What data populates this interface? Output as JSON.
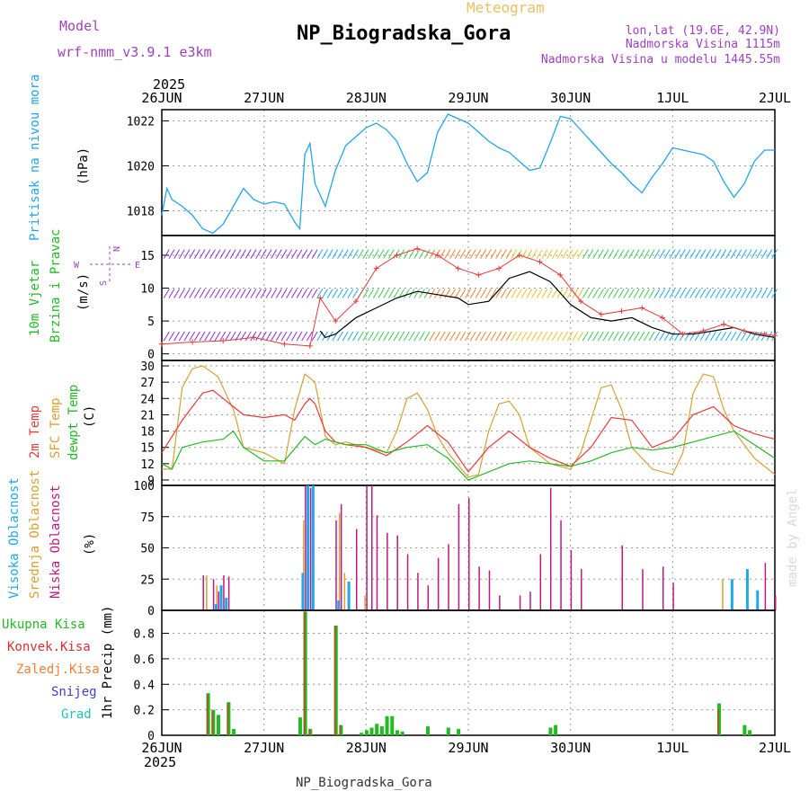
{
  "header": {
    "model_label": "Model",
    "model_value": "wrf-nmm_v3.9.1 e3km",
    "meteogram": "Meteogram",
    "station": "NP_Biogradska_Gora",
    "lonlat": "lon,lat (19.6E, 42.9N)",
    "altitude": "Nadmorska Visina 1115m",
    "model_altitude": "Nadmorska Visina u modelu 1445.55m",
    "year": "2025",
    "footer_station": "NP_Biogradska_Gora",
    "credit": "made by Angel"
  },
  "colors": {
    "pressure": "#1ea8e8",
    "purple": "#a040c0",
    "wind_green": "#22bb22",
    "t2m": "#e83a3a",
    "sfc": "#d8a030",
    "dew": "#22bb22",
    "high_cloud": "#1ea8e8",
    "mid_cloud": "#d8a030",
    "low_cloud": "#c01880",
    "precip_total": "#22bb22",
    "precip_conv": "#d83030",
    "precip_frozen": "#f08030",
    "snow": "#4040d0",
    "hail": "#20c0c0",
    "grid": "#9a9a9a"
  },
  "chart_data": {
    "type": "meteogram",
    "x_dates": [
      "26JUN",
      "27JUN",
      "28JUN",
      "29JUN",
      "30JUN",
      "1JUL",
      "2JUL"
    ],
    "x_range_days": [
      0,
      6
    ],
    "panels": [
      {
        "id": "pressure",
        "ylabel": "Pritisak na nivou mora",
        "unit": "(hPa)",
        "yticks": [
          "1018",
          "1020",
          "1022"
        ],
        "ylim": [
          1016.9,
          1022.5
        ],
        "series": [
          {
            "name": "Pressure",
            "x": [
              0,
              0.05,
              0.1,
              0.2,
              0.3,
              0.4,
              0.5,
              0.6,
              0.7,
              0.8,
              0.9,
              1.0,
              1.1,
              1.2,
              1.3,
              1.35,
              1.4,
              1.45,
              1.5,
              1.6,
              1.7,
              1.8,
              1.9,
              2.0,
              2.1,
              2.2,
              2.3,
              2.4,
              2.5,
              2.6,
              2.7,
              2.8,
              2.9,
              3.0,
              3.1,
              3.2,
              3.3,
              3.4,
              3.5,
              3.6,
              3.7,
              3.8,
              3.9,
              4.0,
              4.1,
              4.2,
              4.3,
              4.4,
              4.5,
              4.6,
              4.7,
              4.8,
              4.9,
              5.0,
              5.1,
              5.2,
              5.3,
              5.4,
              5.5,
              5.6,
              5.7,
              5.8,
              5.9,
              6.0
            ],
            "values": [
              1017.8,
              1019.0,
              1018.5,
              1018.2,
              1017.8,
              1017.2,
              1017.0,
              1017.4,
              1018.2,
              1019.0,
              1018.5,
              1018.3,
              1018.4,
              1018.3,
              1017.5,
              1017.2,
              1020.5,
              1021.0,
              1019.2,
              1018.2,
              1019.8,
              1020.9,
              1021.3,
              1021.7,
              1021.9,
              1021.6,
              1021.1,
              1020.1,
              1019.3,
              1019.7,
              1021.5,
              1022.3,
              1022.1,
              1021.9,
              1021.5,
              1021.1,
              1020.8,
              1020.6,
              1020.2,
              1019.8,
              1019.9,
              1021.0,
              1022.2,
              1022.1,
              1021.6,
              1021.1,
              1020.6,
              1020.1,
              1019.7,
              1019.2,
              1018.8,
              1019.5,
              1020.1,
              1020.8,
              1020.7,
              1020.6,
              1020.5,
              1020.2,
              1019.3,
              1018.6,
              1019.2,
              1020.2,
              1020.7,
              1020.7
            ]
          }
        ]
      },
      {
        "id": "wind",
        "ylabel": "10m Vjetar Brzina i Pravac",
        "unit": "(m/s)",
        "yticks": [
          "0",
          "5",
          "10",
          "15"
        ],
        "ylim": [
          -1,
          18
        ],
        "compass": {
          "n": "N",
          "s": "S",
          "e": "E",
          "w": "W"
        },
        "series": [
          {
            "name": "Gust (red +)",
            "x": [
              0,
              0.3,
              0.6,
              0.9,
              1.2,
              1.45,
              1.55,
              1.7,
              1.9,
              2.1,
              2.3,
              2.5,
              2.7,
              2.9,
              3.1,
              3.3,
              3.5,
              3.7,
              3.9,
              4.1,
              4.3,
              4.5,
              4.7,
              4.9,
              5.1,
              5.3,
              5.5,
              5.7,
              5.9,
              6.0
            ],
            "values": [
              1.5,
              1.8,
              2.0,
              2.5,
              1.5,
              1.2,
              8.5,
              5.0,
              8.0,
              13.0,
              15.0,
              16.0,
              15.0,
              13.0,
              12.0,
              13.0,
              15.0,
              14.0,
              12.0,
              8.0,
              6.0,
              6.5,
              7.0,
              5.5,
              3.0,
              3.5,
              4.5,
              3.5,
              3.0,
              2.8
            ]
          },
          {
            "name": "Mean (black)",
            "x": [
              1.55,
              1.6,
              1.7,
              1.9,
              2.1,
              2.3,
              2.5,
              2.7,
              2.9,
              3.0,
              3.2,
              3.4,
              3.6,
              3.8,
              4.0,
              4.2,
              4.4,
              4.6,
              4.8,
              5.0,
              5.2,
              5.4,
              5.6,
              5.8,
              6.0
            ],
            "values": [
              3.5,
              2.5,
              3.0,
              5.5,
              7.0,
              8.5,
              9.5,
              9.0,
              8.5,
              7.5,
              8.0,
              11.5,
              12.5,
              11.0,
              7.5,
              5.5,
              5.0,
              5.5,
              4.0,
              3.0,
              3.0,
              3.5,
              4.0,
              3.0,
              2.5
            ]
          }
        ]
      },
      {
        "id": "temperature",
        "ylabel_t2m": "2m Temp",
        "ylabel_sfc": "SFC Temp",
        "ylabel_dew": "dewpt Temp",
        "unit": "(C)",
        "yticks": [
          "9",
          "12",
          "15",
          "18",
          "21",
          "24",
          "27",
          "30"
        ],
        "ylim": [
          8,
          31
        ],
        "series": [
          {
            "name": "2m Temp",
            "x": [
              0,
              0.2,
              0.4,
              0.5,
              0.6,
              0.8,
              1.0,
              1.2,
              1.3,
              1.4,
              1.45,
              1.5,
              1.6,
              1.7,
              1.8,
              2.0,
              2.2,
              2.4,
              2.6,
              2.8,
              3.0,
              3.2,
              3.4,
              3.6,
              3.8,
              4.0,
              4.2,
              4.4,
              4.6,
              4.8,
              5.0,
              5.2,
              5.4,
              5.6,
              5.8,
              6.0
            ],
            "values": [
              14,
              20,
              25,
              25.5,
              24,
              21,
              20.5,
              21,
              20,
              23,
              24,
              23,
              18,
              16,
              15.5,
              15,
              13.5,
              16,
              19,
              16,
              10.5,
              15,
              18,
              15,
              13,
              11.5,
              15,
              20.5,
              20,
              15,
              16.5,
              21,
              22.5,
              19,
              17.5,
              16.5
            ]
          },
          {
            "name": "SFC Temp",
            "x": [
              0,
              0.1,
              0.2,
              0.3,
              0.4,
              0.55,
              0.7,
              0.8,
              1.0,
              1.2,
              1.3,
              1.4,
              1.5,
              1.6,
              1.7,
              1.8,
              2.0,
              2.2,
              2.3,
              2.4,
              2.5,
              2.6,
              2.7,
              2.8,
              3.0,
              3.1,
              3.2,
              3.3,
              3.4,
              3.5,
              3.6,
              3.8,
              4.0,
              4.1,
              4.2,
              4.3,
              4.4,
              4.5,
              4.6,
              4.8,
              5.0,
              5.1,
              5.2,
              5.3,
              5.4,
              5.5,
              5.6,
              5.8,
              6.0
            ],
            "values": [
              11,
              11,
              26,
              29.5,
              30,
              28,
              22,
              15,
              14,
              12,
              22,
              28.5,
              27,
              17,
              15.5,
              16,
              15,
              14,
              18,
              24,
              25,
              22,
              17,
              14,
              9.5,
              10,
              18,
              23,
              23.5,
              21,
              15,
              12,
              11,
              14,
              20,
              26,
              26.5,
              22,
              15,
              11,
              10,
              14,
              25,
              28.5,
              28,
              22,
              18,
              13,
              10
            ]
          },
          {
            "name": "dewpt Temp",
            "x": [
              0,
              0.1,
              0.2,
              0.4,
              0.6,
              0.7,
              0.8,
              1.0,
              1.2,
              1.4,
              1.5,
              1.6,
              1.8,
              2.0,
              2.2,
              2.4,
              2.6,
              2.8,
              3.0,
              3.2,
              3.4,
              3.6,
              3.8,
              4.0,
              4.2,
              4.4,
              4.6,
              4.8,
              5.0,
              5.2,
              5.4,
              5.6,
              5.8,
              6.0
            ],
            "values": [
              12,
              11,
              15,
              16,
              16.5,
              18,
              15,
              12.5,
              12.5,
              17,
              15.5,
              16.5,
              15.5,
              15.5,
              14,
              15,
              15.5,
              13,
              9,
              10.5,
              12,
              12.5,
              12,
              11.5,
              12.5,
              14,
              15,
              14.5,
              15,
              16,
              17,
              18,
              15.5,
              13
            ]
          }
        ]
      },
      {
        "id": "clouds",
        "ylabel_high": "Visoka Oblacnost",
        "ylabel_mid": "Srednja Oblacnost",
        "ylabel_low": "Niska Oblacnost",
        "unit": "(%)",
        "yticks": [
          "0",
          "25",
          "50",
          "75",
          "100"
        ],
        "ylim": [
          0,
          100
        ],
        "low": [
          [
            0.4,
            28
          ],
          [
            0.5,
            25
          ],
          [
            0.55,
            15
          ],
          [
            0.6,
            28
          ],
          [
            0.65,
            27
          ],
          [
            1.4,
            100
          ],
          [
            1.45,
            98
          ],
          [
            1.7,
            72
          ],
          [
            1.75,
            85
          ],
          [
            1.9,
            65
          ],
          [
            2.0,
            100
          ],
          [
            2.05,
            100
          ],
          [
            2.1,
            76
          ],
          [
            2.2,
            62
          ],
          [
            2.3,
            60
          ],
          [
            2.4,
            45
          ],
          [
            2.5,
            30
          ],
          [
            2.6,
            20
          ],
          [
            2.7,
            42
          ],
          [
            2.8,
            53
          ],
          [
            2.9,
            85
          ],
          [
            3.0,
            90
          ],
          [
            3.1,
            35
          ],
          [
            3.2,
            32
          ],
          [
            3.3,
            12
          ],
          [
            3.5,
            12
          ],
          [
            3.6,
            15
          ],
          [
            3.7,
            45
          ],
          [
            3.8,
            98
          ],
          [
            3.9,
            72
          ],
          [
            4.0,
            48
          ],
          [
            4.1,
            33
          ],
          [
            4.5,
            52
          ],
          [
            4.7,
            33
          ],
          [
            4.9,
            35
          ],
          [
            5.0,
            22
          ],
          [
            5.9,
            38
          ],
          [
            6.0,
            12
          ]
        ],
        "mid": [
          [
            0.45,
            28
          ],
          [
            0.55,
            20
          ],
          [
            1.4,
            72
          ],
          [
            1.75,
            78
          ],
          [
            1.8,
            30
          ],
          [
            2.0,
            12
          ],
          [
            5.5,
            25
          ]
        ],
        "high": [
          [
            0.5,
            5
          ],
          [
            0.55,
            20
          ],
          [
            0.6,
            10
          ],
          [
            1.35,
            30
          ],
          [
            1.4,
            100
          ],
          [
            1.45,
            100
          ],
          [
            1.7,
            8
          ],
          [
            1.8,
            23
          ],
          [
            5.7,
            33
          ],
          [
            5.8,
            16
          ],
          [
            5.55,
            25
          ]
        ]
      },
      {
        "id": "precip",
        "ylabel": "1hr Precip",
        "unit": "(mm)",
        "legend": [
          "Ukupna Kisa",
          "Konvek.Kisa",
          "Zaledj.Kisa",
          "Snijeg",
          "Grad"
        ],
        "yticks": [
          "0",
          "0.2",
          "0.4",
          "0.6",
          "0.8"
        ],
        "ylim": [
          0,
          0.98
        ],
        "total": [
          [
            0.45,
            0.33
          ],
          [
            0.5,
            0.2
          ],
          [
            0.55,
            0.16
          ],
          [
            0.65,
            0.26
          ],
          [
            0.7,
            0.05
          ],
          [
            1.35,
            0.14
          ],
          [
            1.4,
            0.97
          ],
          [
            1.45,
            0.05
          ],
          [
            1.7,
            0.86
          ],
          [
            1.75,
            0.08
          ],
          [
            1.95,
            0.02
          ],
          [
            2.0,
            0.04
          ],
          [
            2.05,
            0.06
          ],
          [
            2.1,
            0.09
          ],
          [
            2.15,
            0.07
          ],
          [
            2.2,
            0.15
          ],
          [
            2.25,
            0.15
          ],
          [
            2.3,
            0.04
          ],
          [
            2.35,
            0.03
          ],
          [
            2.6,
            0.07
          ],
          [
            2.8,
            0.06
          ],
          [
            2.9,
            0.05
          ],
          [
            3.8,
            0.06
          ],
          [
            3.85,
            0.08
          ],
          [
            5.45,
            0.25
          ],
          [
            5.7,
            0.08
          ],
          [
            5.75,
            0.04
          ]
        ],
        "conv": [
          [
            0.45,
            0.32
          ],
          [
            0.5,
            0.19
          ],
          [
            0.65,
            0.25
          ],
          [
            1.4,
            0.97
          ],
          [
            1.45,
            0.05
          ],
          [
            1.7,
            0.86
          ],
          [
            1.75,
            0.08
          ],
          [
            5.45,
            0.2
          ]
        ]
      }
    ]
  }
}
